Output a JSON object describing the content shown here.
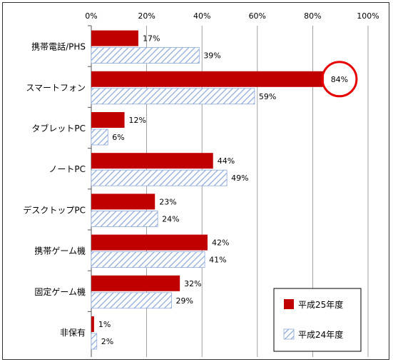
{
  "chart_data": {
    "type": "bar",
    "orientation": "horizontal",
    "categories": [
      "携帯電話/PHS",
      "スマートフォン",
      "タブレットPC",
      "ノートPC",
      "デスクトップPC",
      "携帯ゲーム機",
      "固定ゲーム機",
      "非保有"
    ],
    "series": [
      {
        "name": "平成25年度",
        "values": [
          17,
          84,
          12,
          44,
          23,
          42,
          32,
          1
        ],
        "color": "#c00000",
        "pattern": "solid"
      },
      {
        "name": "平成24年度",
        "values": [
          39,
          59,
          6,
          49,
          24,
          41,
          29,
          2
        ],
        "color": "#8ea9db",
        "pattern": "diagonal-hatch"
      }
    ],
    "value_suffix": "%",
    "xlim": [
      0,
      100
    ],
    "x_ticks": [
      "0%",
      "20%",
      "40%",
      "60%",
      "80%",
      "100%"
    ],
    "x_axis_position": "top",
    "grid": true,
    "legend_position": "bottom-right",
    "highlight": {
      "category": "スマートフォン",
      "series": "平成25年度",
      "shape": "red-circle"
    }
  }
}
